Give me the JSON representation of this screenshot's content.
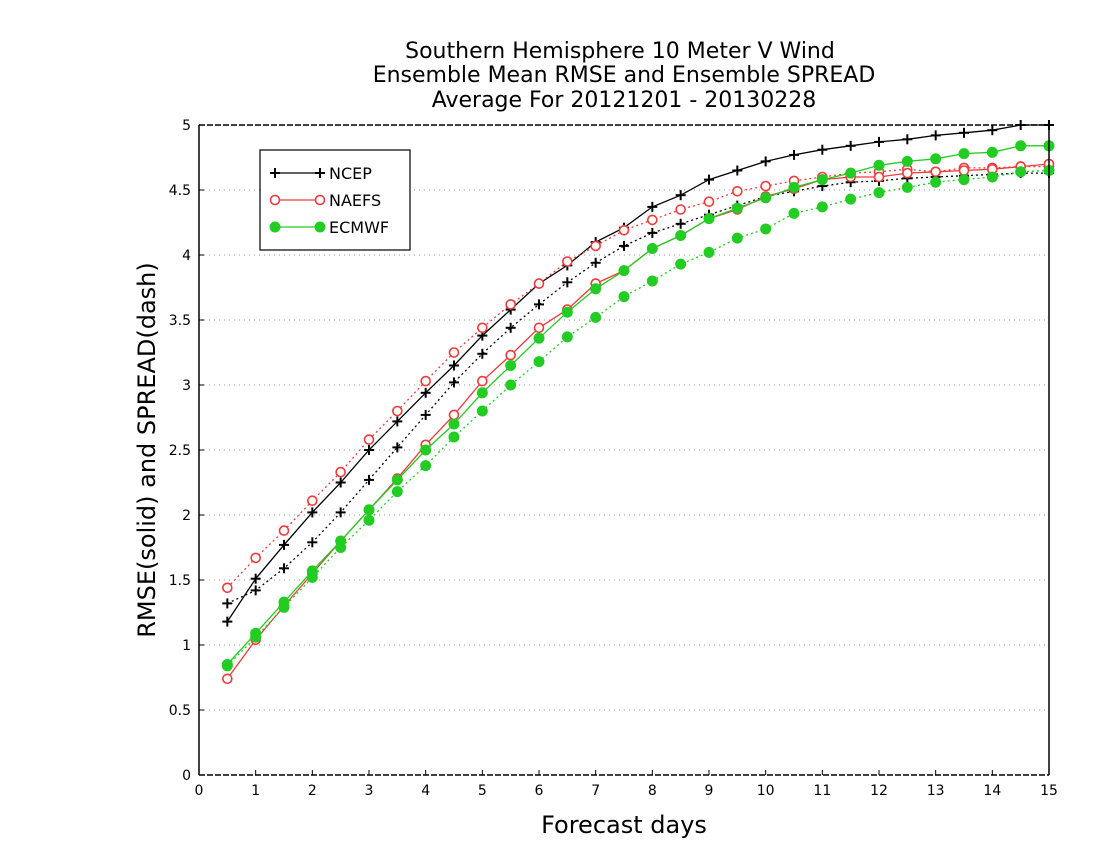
{
  "chart_data": {
    "type": "line",
    "title_lines": [
      "Southern Hemisphere 10 Meter V Wind",
      "Ensemble Mean RMSE and Ensemble SPREAD",
      "Average For 20121201 - 20130228"
    ],
    "xlabel": "Forecast days",
    "ylabel": "RMSE(solid) and SPREAD(dash)",
    "xlim": [
      0,
      15
    ],
    "ylim": [
      0,
      5
    ],
    "x_ticks": [
      0,
      1,
      2,
      3,
      4,
      5,
      6,
      7,
      8,
      9,
      10,
      11,
      12,
      13,
      14,
      15
    ],
    "y_ticks": [
      0,
      0.5,
      1,
      1.5,
      2,
      2.5,
      3,
      3.5,
      4,
      4.5,
      5
    ],
    "y_tick_labels": [
      "0",
      "0.5",
      "1",
      "1.5",
      "2",
      "2.5",
      "3",
      "3.5",
      "4",
      "4.5",
      "5"
    ],
    "grid": {
      "horizontal": true,
      "style": "dotted"
    },
    "legend_position": "top-left",
    "x": [
      0.5,
      1,
      1.5,
      2,
      2.5,
      3,
      3.5,
      4,
      4.5,
      5,
      5.5,
      6,
      6.5,
      7,
      7.5,
      8,
      8.5,
      9,
      9.5,
      10,
      10.5,
      11,
      11.5,
      12,
      12.5,
      13,
      13.5,
      14,
      14.5,
      15
    ],
    "series": [
      {
        "name": "NCEP",
        "color": "#000000",
        "marker": "plus",
        "rmse": [
          1.18,
          1.51,
          1.77,
          2.02,
          2.25,
          2.5,
          2.72,
          2.94,
          3.15,
          3.38,
          3.58,
          3.78,
          3.92,
          4.1,
          4.21,
          4.37,
          4.46,
          4.58,
          4.65,
          4.72,
          4.77,
          4.81,
          4.84,
          4.87,
          4.89,
          4.92,
          4.94,
          4.96,
          5.0,
          5.0
        ],
        "spread": [
          1.32,
          1.42,
          1.59,
          1.79,
          2.02,
          2.27,
          2.52,
          2.77,
          3.02,
          3.24,
          3.44,
          3.62,
          3.79,
          3.94,
          4.07,
          4.17,
          4.24,
          4.31,
          4.38,
          4.45,
          4.49,
          4.53,
          4.56,
          4.57,
          4.59,
          4.6,
          4.61,
          4.62,
          4.63,
          4.63
        ]
      },
      {
        "name": "NAEFS",
        "color": "#ee3b3b",
        "marker": "open-circle",
        "rmse": [
          0.74,
          1.04,
          1.3,
          1.55,
          1.8,
          2.04,
          2.28,
          2.54,
          2.77,
          3.03,
          3.23,
          3.44,
          3.58,
          3.78,
          3.88,
          4.05,
          4.15,
          4.28,
          4.35,
          4.45,
          4.51,
          4.58,
          4.6,
          4.6,
          4.63,
          4.64,
          4.65,
          4.66,
          4.68,
          4.7
        ],
        "spread": [
          1.44,
          1.67,
          1.88,
          2.11,
          2.33,
          2.58,
          2.8,
          3.03,
          3.25,
          3.44,
          3.62,
          3.78,
          3.95,
          4.07,
          4.19,
          4.27,
          4.35,
          4.41,
          4.49,
          4.53,
          4.57,
          4.6,
          4.63,
          4.64,
          4.66,
          4.64,
          4.67,
          4.67,
          4.68,
          4.68
        ]
      },
      {
        "name": "ECMWF",
        "color": "#22cc22",
        "marker": "filled-circle",
        "rmse": [
          0.85,
          1.09,
          1.33,
          1.57,
          1.8,
          2.04,
          2.27,
          2.5,
          2.7,
          2.94,
          3.15,
          3.36,
          3.56,
          3.74,
          3.88,
          4.05,
          4.15,
          4.28,
          4.36,
          4.44,
          4.52,
          4.58,
          4.63,
          4.69,
          4.72,
          4.74,
          4.78,
          4.79,
          4.84,
          4.84
        ],
        "spread": [
          0.84,
          1.06,
          1.29,
          1.52,
          1.75,
          1.96,
          2.18,
          2.38,
          2.6,
          2.8,
          3.0,
          3.18,
          3.37,
          3.52,
          3.68,
          3.8,
          3.93,
          4.02,
          4.13,
          4.2,
          4.32,
          4.37,
          4.43,
          4.48,
          4.52,
          4.56,
          4.58,
          4.6,
          4.64,
          4.65
        ]
      }
    ]
  }
}
